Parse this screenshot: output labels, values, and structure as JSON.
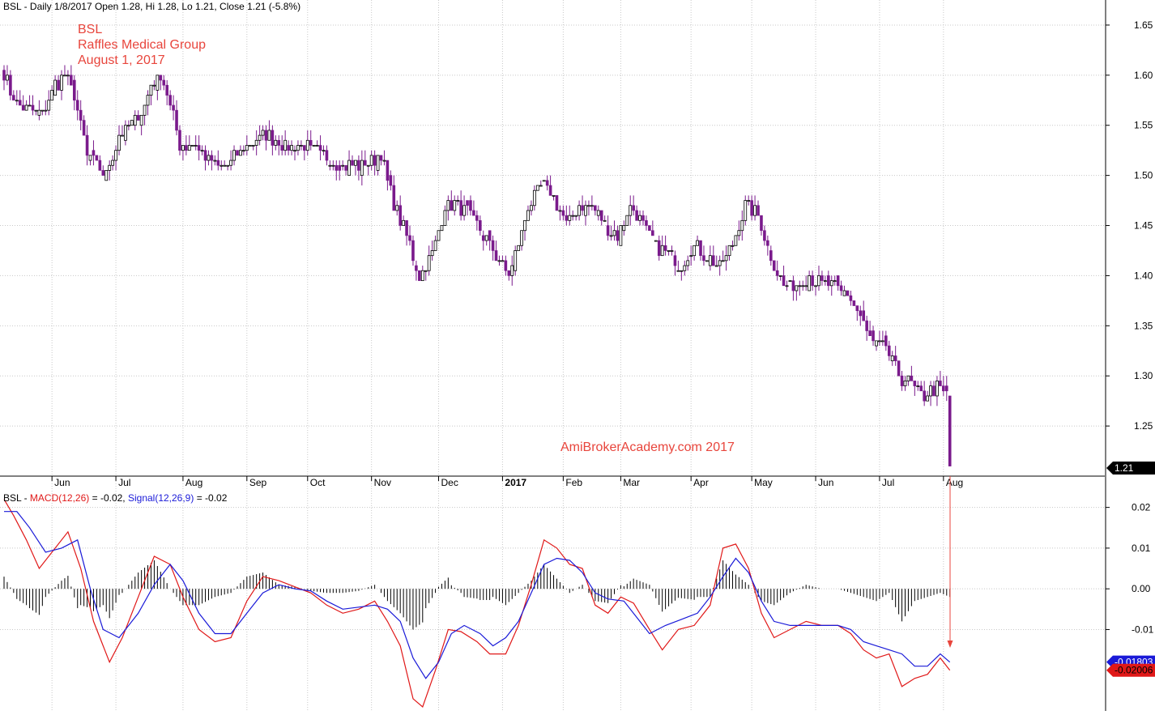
{
  "header": {
    "price_line": "BSL - Daily 1/8/2017 Open 1.28, Hi 1.28, Lo 1.21, Close 1.21 (-5.8%)",
    "macd_prefix": "BSL - ",
    "macd_label": "MACD(12,26)",
    "macd_value": " = -0.02, ",
    "signal_label": "Signal(12,26,9)",
    "signal_value": " = -0.02"
  },
  "annotations": {
    "ticker": "BSL",
    "company": "Raffles Medical Group",
    "date": "August 1, 2017",
    "watermark": "AmiBrokerAcademy.com  2017"
  },
  "colors": {
    "candle": "#7a1a8c",
    "annotation": "#e8453c",
    "macd": "#e01818",
    "signal": "#1a1ad8",
    "histogram": "#000000",
    "grid": "#c8c8c8"
  },
  "chart_data": [
    {
      "type": "candlestick",
      "title": "BSL - Daily 1/8/2017 Open 1.28, Hi 1.28, Lo 1.21, Close 1.21 (-5.8%)",
      "x_labels": [
        "Jun",
        "Jul",
        "Aug",
        "Sep",
        "Oct",
        "Nov",
        "Dec",
        "2017",
        "Feb",
        "Mar",
        "Apr",
        "May",
        "Jun",
        "Jul",
        "Aug"
      ],
      "y_ticks": [
        1.25,
        1.3,
        1.35,
        1.4,
        1.45,
        1.5,
        1.55,
        1.6,
        1.65
      ],
      "ylim": [
        1.2,
        1.675
      ],
      "last_close_label": "1.21",
      "last_bar": {
        "open": 1.28,
        "high": 1.28,
        "low": 1.21,
        "close": 1.21
      },
      "close_path": [
        [
          0,
          1.6
        ],
        [
          4,
          1.57
        ],
        [
          12,
          1.56
        ],
        [
          16,
          1.59
        ],
        [
          19,
          1.6
        ],
        [
          22,
          1.58
        ],
        [
          24,
          1.55
        ],
        [
          26,
          1.52
        ],
        [
          32,
          1.5
        ],
        [
          36,
          1.54
        ],
        [
          40,
          1.55
        ],
        [
          44,
          1.57
        ],
        [
          46,
          1.59
        ],
        [
          49,
          1.6
        ],
        [
          52,
          1.57
        ],
        [
          55,
          1.53
        ],
        [
          60,
          1.53
        ],
        [
          66,
          1.51
        ],
        [
          70,
          1.51
        ],
        [
          76,
          1.53
        ],
        [
          82,
          1.54
        ],
        [
          88,
          1.53
        ],
        [
          94,
          1.53
        ],
        [
          100,
          1.52
        ],
        [
          106,
          1.51
        ],
        [
          112,
          1.51
        ],
        [
          118,
          1.52
        ],
        [
          122,
          1.47
        ],
        [
          126,
          1.44
        ],
        [
          130,
          1.4
        ],
        [
          134,
          1.42
        ],
        [
          138,
          1.47
        ],
        [
          142,
          1.47
        ],
        [
          146,
          1.46
        ],
        [
          150,
          1.44
        ],
        [
          154,
          1.42
        ],
        [
          158,
          1.4
        ],
        [
          161,
          1.43
        ],
        [
          164,
          1.47
        ],
        [
          168,
          1.49
        ],
        [
          172,
          1.48
        ],
        [
          176,
          1.45
        ],
        [
          180,
          1.47
        ],
        [
          184,
          1.47
        ],
        [
          188,
          1.45
        ],
        [
          192,
          1.44
        ],
        [
          196,
          1.47
        ],
        [
          200,
          1.45
        ],
        [
          204,
          1.43
        ],
        [
          208,
          1.42
        ],
        [
          212,
          1.41
        ],
        [
          216,
          1.43
        ],
        [
          220,
          1.42
        ],
        [
          224,
          1.41
        ],
        [
          228,
          1.43
        ],
        [
          232,
          1.47
        ],
        [
          236,
          1.46
        ],
        [
          240,
          1.42
        ],
        [
          244,
          1.39
        ],
        [
          248,
          1.39
        ],
        [
          252,
          1.4
        ],
        [
          256,
          1.39
        ],
        [
          260,
          1.39
        ],
        [
          264,
          1.38
        ],
        [
          268,
          1.36
        ],
        [
          272,
          1.33
        ],
        [
          276,
          1.33
        ],
        [
          280,
          1.3
        ],
        [
          284,
          1.29
        ],
        [
          288,
          1.28
        ],
        [
          292,
          1.29
        ],
        [
          295,
          1.28
        ],
        [
          296,
          1.21
        ]
      ]
    },
    {
      "type": "line",
      "title": "BSL - MACD(12,26) = -0.02, Signal(12,26,9) = -0.02",
      "y_ticks": [
        -0.01,
        0.0,
        0.01,
        0.02
      ],
      "ylim": [
        -0.03,
        0.0245
      ],
      "macd_last_label": "-0.02006",
      "signal_last_label": "-0.01803",
      "series": [
        {
          "name": "MACD(12,26)",
          "values": [
            [
              0,
              0.022
            ],
            [
              3,
              0.018
            ],
            [
              7,
              0.012
            ],
            [
              11,
              0.005
            ],
            [
              15,
              0.009
            ],
            [
              20,
              0.014
            ],
            [
              24,
              0.005
            ],
            [
              28,
              -0.008
            ],
            [
              33,
              -0.018
            ],
            [
              37,
              -0.012
            ],
            [
              42,
              -0.002
            ],
            [
              47,
              0.008
            ],
            [
              52,
              0.006
            ],
            [
              56,
              -0.002
            ],
            [
              61,
              -0.01
            ],
            [
              66,
              -0.013
            ],
            [
              71,
              -0.012
            ],
            [
              76,
              -0.003
            ],
            [
              81,
              0.003
            ],
            [
              86,
              0.002
            ],
            [
              91,
              0.0005
            ],
            [
              96,
              -0.001
            ],
            [
              101,
              -0.004
            ],
            [
              106,
              -0.006
            ],
            [
              111,
              -0.005
            ],
            [
              116,
              -0.003
            ],
            [
              120,
              -0.008
            ],
            [
              124,
              -0.014
            ],
            [
              128,
              -0.027
            ],
            [
              131,
              -0.029
            ],
            [
              135,
              -0.02
            ],
            [
              139,
              -0.01
            ],
            [
              143,
              -0.0105
            ],
            [
              148,
              -0.013
            ],
            [
              152,
              -0.016
            ],
            [
              157,
              -0.016
            ],
            [
              161,
              -0.009
            ],
            [
              165,
              0.001
            ],
            [
              169,
              0.012
            ],
            [
              173,
              0.01
            ],
            [
              177,
              0.006
            ],
            [
              181,
              0.005
            ],
            [
              185,
              -0.004
            ],
            [
              189,
              -0.006
            ],
            [
              193,
              -0.002
            ],
            [
              197,
              -0.0035
            ],
            [
              202,
              -0.01
            ],
            [
              206,
              -0.015
            ],
            [
              211,
              -0.01
            ],
            [
              216,
              -0.009
            ],
            [
              221,
              -0.004
            ],
            [
              225,
              0.01
            ],
            [
              229,
              0.011
            ],
            [
              233,
              0.005
            ],
            [
              237,
              -0.006
            ],
            [
              241,
              -0.012
            ],
            [
              246,
              -0.01
            ],
            [
              251,
              -0.008
            ],
            [
              256,
              -0.009
            ],
            [
              261,
              -0.009
            ],
            [
              265,
              -0.011
            ],
            [
              269,
              -0.015
            ],
            [
              273,
              -0.017
            ],
            [
              277,
              -0.016
            ],
            [
              281,
              -0.024
            ],
            [
              285,
              -0.022
            ],
            [
              289,
              -0.021
            ],
            [
              293,
              -0.017
            ],
            [
              296,
              -0.02
            ]
          ]
        },
        {
          "name": "Signal(12,26,9)",
          "values": [
            [
              0,
              0.019
            ],
            [
              4,
              0.019
            ],
            [
              8,
              0.015
            ],
            [
              13,
              0.009
            ],
            [
              18,
              0.01
            ],
            [
              23,
              0.012
            ],
            [
              27,
              0.0
            ],
            [
              31,
              -0.01
            ],
            [
              36,
              -0.012
            ],
            [
              42,
              -0.006
            ],
            [
              47,
              0.001
            ],
            [
              52,
              0.006
            ],
            [
              56,
              0.002
            ],
            [
              61,
              -0.006
            ],
            [
              66,
              -0.011
            ],
            [
              71,
              -0.011
            ],
            [
              76,
              -0.006
            ],
            [
              81,
              -0.001
            ],
            [
              86,
              0.001
            ],
            [
              91,
              0.0
            ],
            [
              96,
              -0.0005
            ],
            [
              101,
              -0.003
            ],
            [
              106,
              -0.005
            ],
            [
              111,
              -0.0045
            ],
            [
              116,
              -0.004
            ],
            [
              120,
              -0.005
            ],
            [
              124,
              -0.008
            ],
            [
              128,
              -0.017
            ],
            [
              132,
              -0.022
            ],
            [
              136,
              -0.018
            ],
            [
              140,
              -0.011
            ],
            [
              144,
              -0.009
            ],
            [
              149,
              -0.011
            ],
            [
              153,
              -0.014
            ],
            [
              157,
              -0.012
            ],
            [
              161,
              -0.008
            ],
            [
              165,
              -0.001
            ],
            [
              169,
              0.006
            ],
            [
              173,
              0.0075
            ],
            [
              177,
              0.007
            ],
            [
              181,
              0.004
            ],
            [
              185,
              -0.001
            ],
            [
              189,
              -0.0025
            ],
            [
              194,
              -0.003
            ],
            [
              198,
              -0.007
            ],
            [
              202,
              -0.011
            ],
            [
              207,
              -0.009
            ],
            [
              212,
              -0.0075
            ],
            [
              217,
              -0.006
            ],
            [
              221,
              -0.002
            ],
            [
              225,
              0.003
            ],
            [
              229,
              0.0075
            ],
            [
              233,
              0.004
            ],
            [
              237,
              -0.003
            ],
            [
              241,
              -0.008
            ],
            [
              246,
              -0.009
            ],
            [
              251,
              -0.009
            ],
            [
              256,
              -0.009
            ],
            [
              261,
              -0.009
            ],
            [
              265,
              -0.01
            ],
            [
              269,
              -0.013
            ],
            [
              273,
              -0.014
            ],
            [
              277,
              -0.015
            ],
            [
              281,
              -0.016
            ],
            [
              285,
              -0.019
            ],
            [
              289,
              -0.019
            ],
            [
              293,
              -0.016
            ],
            [
              296,
              -0.018
            ]
          ]
        }
      ]
    }
  ]
}
